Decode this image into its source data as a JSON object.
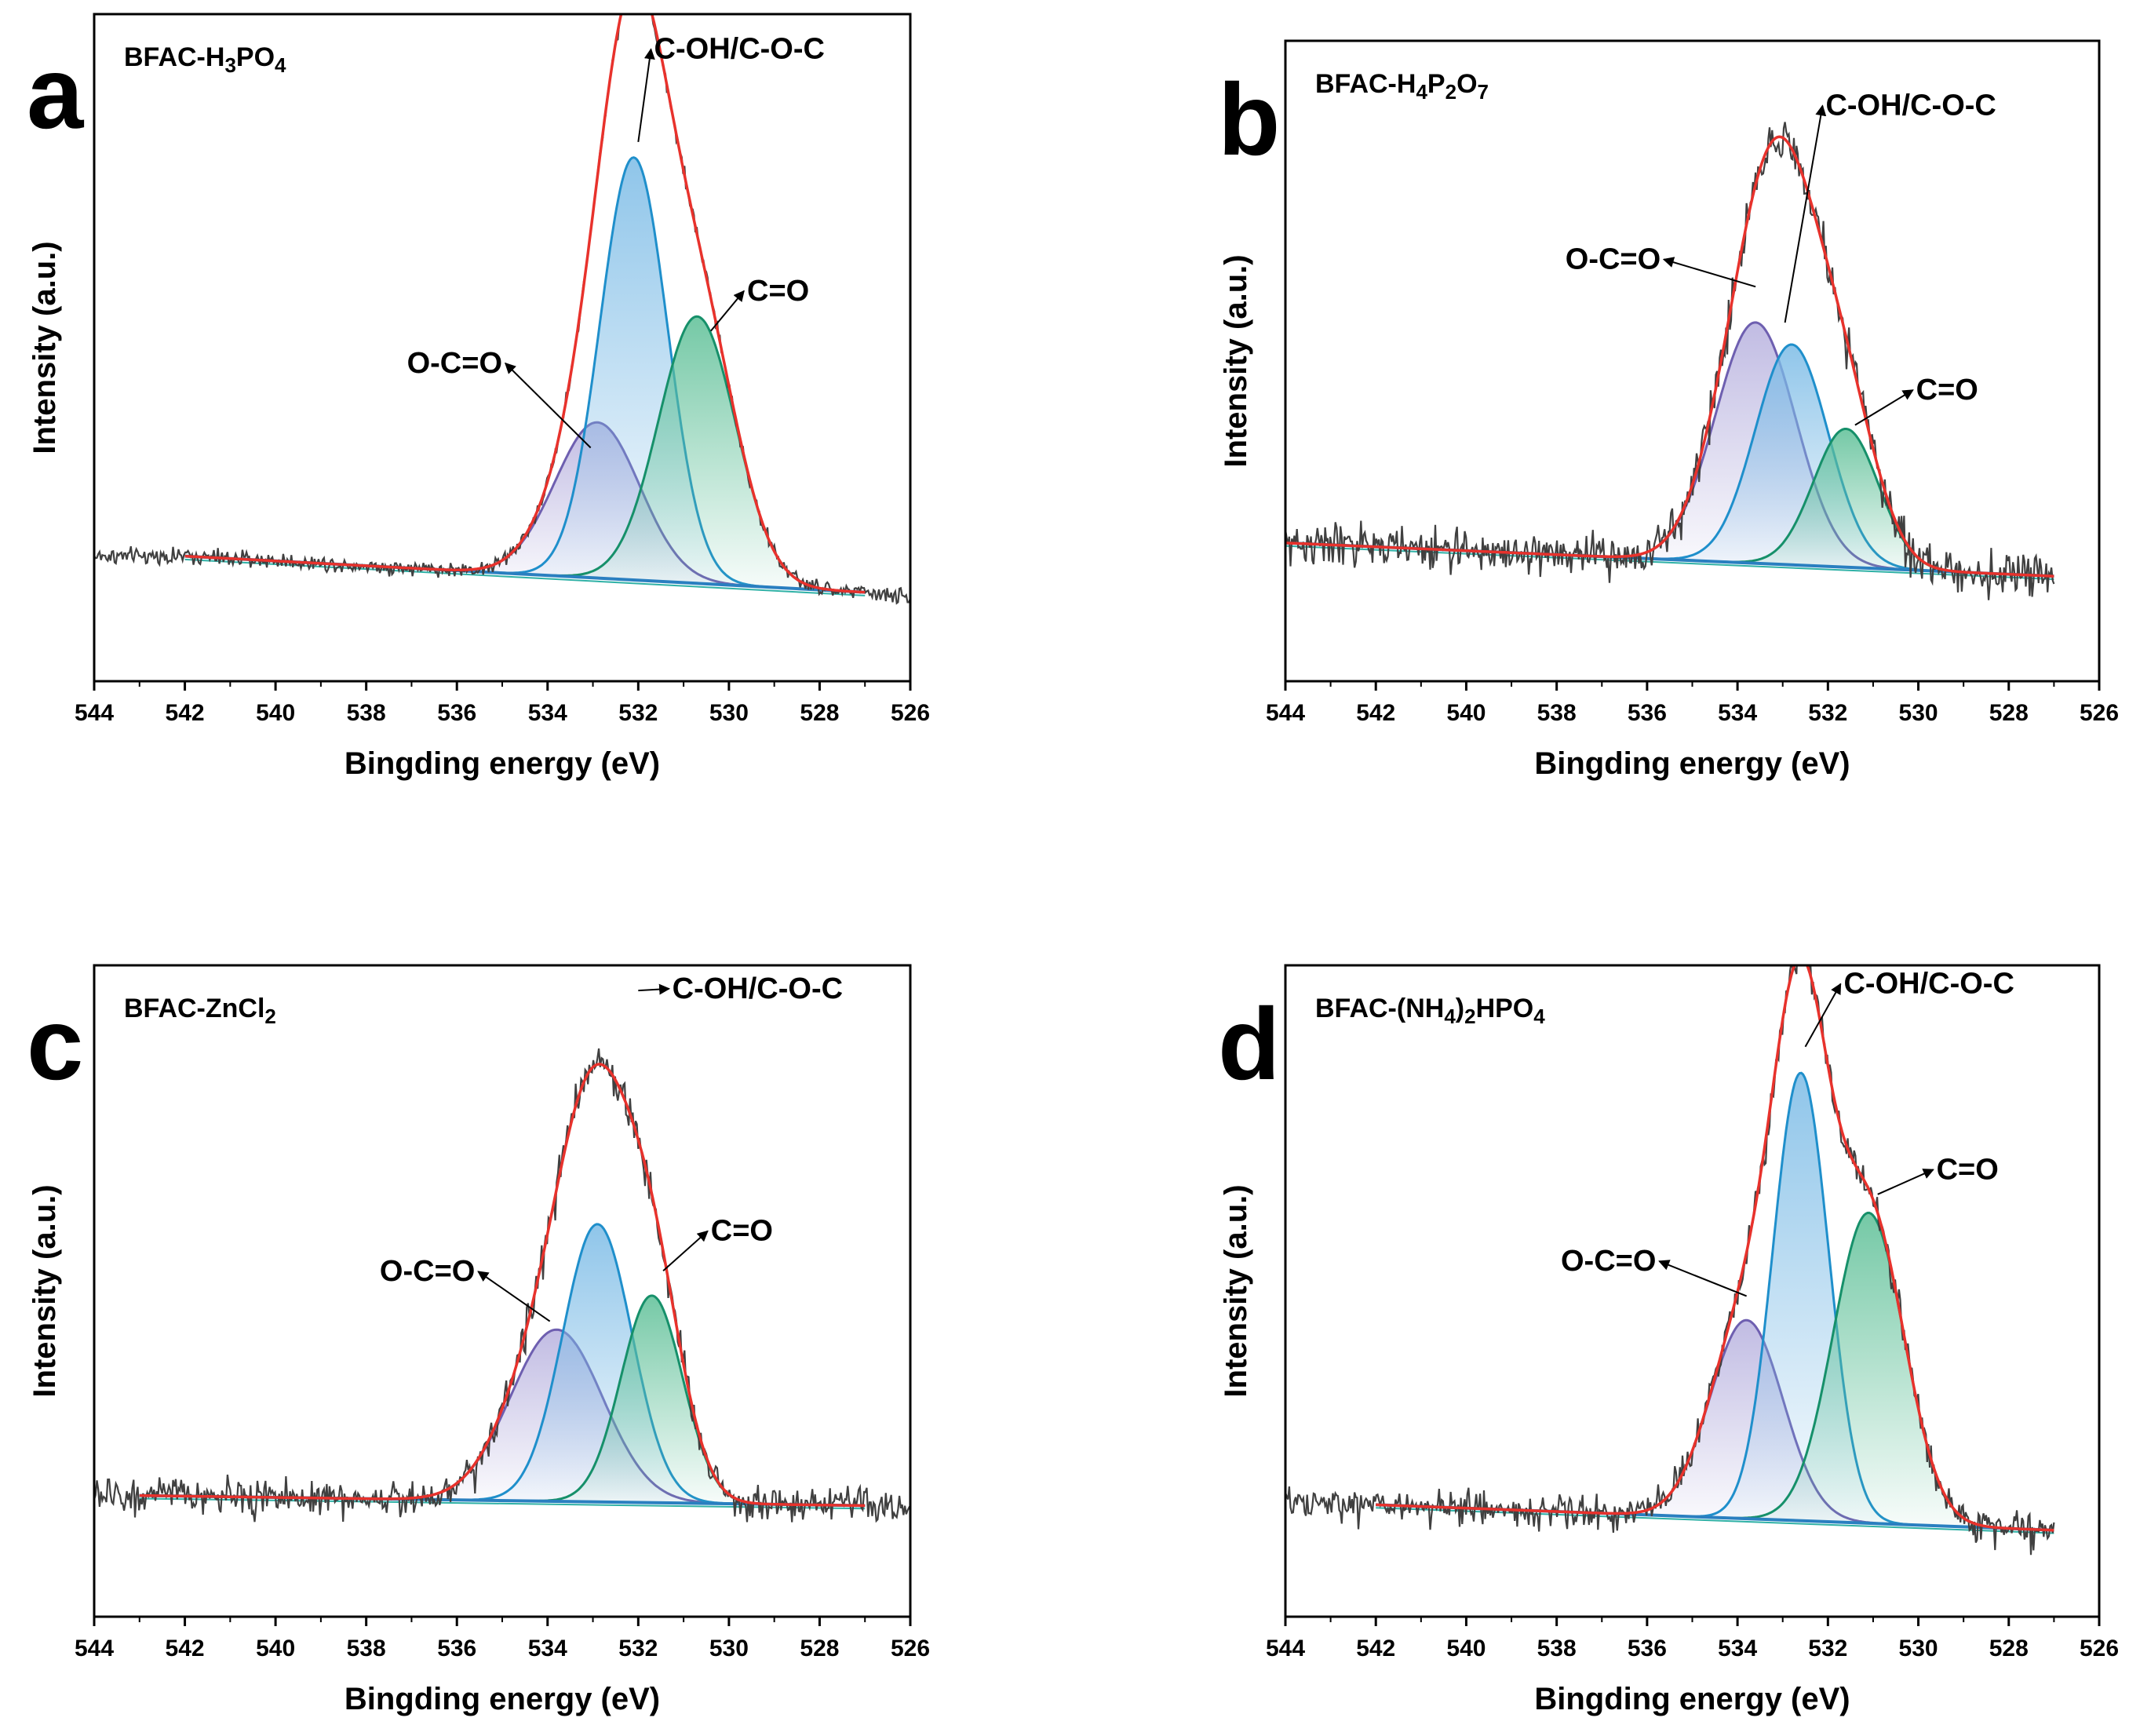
{
  "colors": {
    "raw": "#404040",
    "envelope": "#e8322c",
    "oco": "#6e5fb0",
    "oco_fill": "#b6b0de",
    "coh": "#1f8fcb",
    "coh_fill": "#7bbbe6",
    "co": "#16906a",
    "co_fill": "#5cbf96",
    "background": "#2a7fc0",
    "shirley": "#2fb1a6"
  },
  "chart_data": [
    {
      "panel_label": "a",
      "type": "line",
      "title": {
        "main": "BFAC-H",
        "parts": [
          [
            "3",
            "sub"
          ],
          [
            "PO",
            "norm"
          ],
          [
            "4",
            "sub"
          ]
        ]
      },
      "xlabel": "Bingding energy (eV)",
      "ylabel": "Intensity (a.u.)",
      "xlim": [
        544,
        526
      ],
      "ylim": [
        -0.12,
        1.08
      ],
      "xticks": [
        544,
        542,
        540,
        538,
        536,
        534,
        532,
        530,
        528,
        526
      ],
      "fit_range": [
        542,
        527
      ],
      "baseline": [
        0.105,
        0.04
      ],
      "noise": 0.012,
      "raw_range": [
        544,
        526
      ],
      "series": [
        {
          "name": "O-C=O",
          "center": 532.9,
          "height": 0.28,
          "fwhm": 2.2
        },
        {
          "name": "C-OH/C-O-C",
          "center": 532.1,
          "height": 0.76,
          "fwhm": 1.75
        },
        {
          "name": "C=O",
          "center": 530.7,
          "height": 0.48,
          "fwhm": 2.0
        }
      ],
      "annotations": [
        {
          "text": "C-OH/C-O-C",
          "x": 531.65,
          "y": 1.0,
          "anchor": "start",
          "tip": [
            532.0,
            0.85
          ]
        },
        {
          "text": "C=O",
          "x": 529.6,
          "y": 0.565,
          "anchor": "start",
          "tip": [
            530.4,
            0.51
          ]
        },
        {
          "text": "O-C=O",
          "x": 535.0,
          "y": 0.435,
          "anchor": "end",
          "tip": [
            533.05,
            0.3
          ]
        }
      ]
    },
    {
      "panel_label": "b",
      "type": "line",
      "title": {
        "main": "BFAC-H",
        "parts": [
          [
            "4",
            "sub"
          ],
          [
            "P",
            "norm"
          ],
          [
            "2",
            "sub"
          ],
          [
            "O",
            "norm"
          ],
          [
            "7",
            "sub"
          ]
        ]
      },
      "xlabel": "Bingding energy (eV)",
      "ylabel": "Intensity (a.u.)",
      "xlim": [
        544,
        526
      ],
      "ylim": [
        -0.25,
        1.0
      ],
      "xticks": [
        544,
        542,
        540,
        538,
        536,
        534,
        532,
        530,
        528,
        526
      ],
      "fit_range": [
        544,
        527
      ],
      "baseline": [
        0.02,
        -0.045
      ],
      "noise": 0.035,
      "raw_range": [
        544,
        527
      ],
      "series": [
        {
          "name": "O-C=O",
          "center": 533.6,
          "height": 0.47,
          "fwhm": 2.1
        },
        {
          "name": "C-OH/C-O-C",
          "center": 532.8,
          "height": 0.43,
          "fwhm": 1.9
        },
        {
          "name": "C=O",
          "center": 531.6,
          "height": 0.27,
          "fwhm": 1.7
        }
      ],
      "annotations": [
        {
          "text": "C-OH/C-O-C",
          "x": 532.05,
          "y": 0.855,
          "anchor": "start",
          "tip": [
            532.95,
            0.45
          ]
        },
        {
          "text": "C=O",
          "x": 530.05,
          "y": 0.3,
          "anchor": "start",
          "tip": [
            531.4,
            0.25
          ]
        },
        {
          "text": "O-C=O",
          "x": 535.7,
          "y": 0.555,
          "anchor": "end",
          "tip": [
            533.6,
            0.52
          ]
        }
      ]
    },
    {
      "panel_label": "c",
      "type": "line",
      "title": {
        "main": "BFAC-ZnCl",
        "parts": [
          [
            "2",
            "sub"
          ]
        ]
      },
      "xlabel": "Bingding energy (eV)",
      "ylabel": "Intensity (a.u.)",
      "xlim": [
        544,
        526
      ],
      "ylim": [
        -0.24,
        1.05
      ],
      "xticks": [
        544,
        542,
        540,
        538,
        536,
        534,
        532,
        530,
        528,
        526
      ],
      "fit_range": [
        543,
        527
      ],
      "baseline": [
        0.0,
        -0.02
      ],
      "noise": 0.03,
      "raw_range": [
        544,
        526
      ],
      "series": [
        {
          "name": "O-C=O",
          "center": 533.8,
          "height": 0.34,
          "fwhm": 2.4
        },
        {
          "name": "C-OH/C-O-C",
          "center": 532.9,
          "height": 0.55,
          "fwhm": 1.8
        },
        {
          "name": "C=O",
          "center": 531.7,
          "height": 0.41,
          "fwhm": 1.6
        }
      ],
      "annotations": [
        {
          "text": "C-OH/C-O-C",
          "x": 531.25,
          "y": 0.985,
          "anchor": "start",
          "tip": [
            532.0,
            1.0
          ]
        },
        {
          "text": "C=O",
          "x": 530.4,
          "y": 0.505,
          "anchor": "start",
          "tip": [
            531.45,
            0.445
          ]
        },
        {
          "text": "O-C=O",
          "x": 535.6,
          "y": 0.425,
          "anchor": "end",
          "tip": [
            533.95,
            0.345
          ]
        }
      ]
    },
    {
      "panel_label": "d",
      "type": "line",
      "title": {
        "main": "BFAC-(NH",
        "parts": [
          [
            "4",
            "sub"
          ],
          [
            ")",
            "norm"
          ],
          [
            "2",
            "sub"
          ],
          [
            "HPO",
            "norm"
          ],
          [
            "4",
            "sub"
          ]
        ]
      },
      "xlabel": "Bingding energy (eV)",
      "ylabel": "Intensity (a.u.)",
      "xlim": [
        544,
        526
      ],
      "ylim": [
        -0.2,
        1.08
      ],
      "xticks": [
        544,
        542,
        540,
        538,
        536,
        534,
        532,
        530,
        528,
        526
      ],
      "fit_range": [
        542,
        527
      ],
      "baseline": [
        0.02,
        -0.03
      ],
      "noise": 0.028,
      "raw_range": [
        544,
        527
      ],
      "series": [
        {
          "name": "O-C=O",
          "center": 533.8,
          "height": 0.39,
          "fwhm": 1.9
        },
        {
          "name": "C-OH/C-O-C",
          "center": 532.6,
          "height": 0.88,
          "fwhm": 1.45
        },
        {
          "name": "C=O",
          "center": 531.1,
          "height": 0.61,
          "fwhm": 1.85
        }
      ],
      "annotations": [
        {
          "text": "C-OH/C-O-C",
          "x": 531.65,
          "y": 1.025,
          "anchor": "start",
          "tip": [
            532.5,
            0.92
          ]
        },
        {
          "text": "C=O",
          "x": 529.6,
          "y": 0.66,
          "anchor": "start",
          "tip": [
            530.9,
            0.63
          ]
        },
        {
          "text": "O-C=O",
          "x": 535.8,
          "y": 0.48,
          "anchor": "end",
          "tip": [
            533.8,
            0.43
          ]
        }
      ]
    }
  ]
}
